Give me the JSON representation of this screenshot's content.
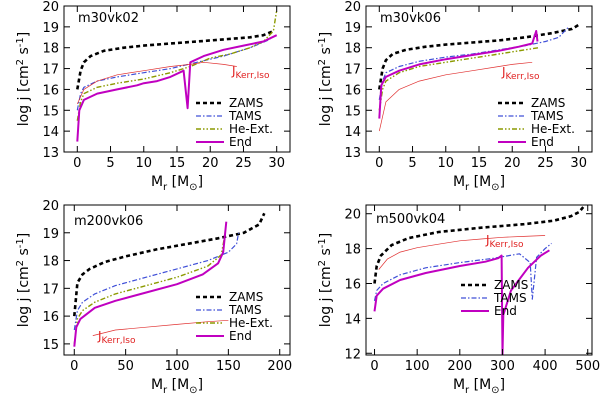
{
  "chart_data": [
    {
      "type": "line",
      "title": "m30vk02",
      "xlabel": "M_r [M_sun]",
      "ylabel": "log j [cm^2 s^-1]",
      "xlim": [
        -2,
        32
      ],
      "ylim": [
        13,
        20
      ],
      "x_ticks": [
        0,
        5,
        10,
        15,
        20,
        25,
        30
      ],
      "y_ticks": [
        13,
        14,
        15,
        16,
        17,
        18,
        19,
        20
      ],
      "legend": [
        "ZAMS",
        "TAMS",
        "He-Ext.",
        "End"
      ],
      "annotation": "J_Kerr,Iso",
      "series": [
        {
          "name": "ZAMS",
          "x": [
            0,
            0.5,
            1,
            2,
            4,
            7,
            10,
            14,
            18,
            22,
            26,
            28,
            29.5
          ],
          "y": [
            16.0,
            16.9,
            17.3,
            17.6,
            17.85,
            18.0,
            18.1,
            18.2,
            18.3,
            18.4,
            18.5,
            18.6,
            18.8
          ]
        },
        {
          "name": "TAMS",
          "x": [
            0,
            0.5,
            1,
            3,
            6,
            10,
            14,
            18,
            22,
            26,
            29
          ],
          "y": [
            15.0,
            15.8,
            16.1,
            16.4,
            16.6,
            16.8,
            17.0,
            17.3,
            17.6,
            18.0,
            18.4
          ]
        },
        {
          "name": "He-Ext.",
          "x": [
            0,
            0.5,
            1,
            3,
            6,
            10,
            14,
            17,
            20,
            23,
            26,
            28,
            29.5,
            30
          ],
          "y": [
            14.5,
            15.4,
            15.8,
            16.1,
            16.3,
            16.5,
            16.8,
            17.1,
            17.5,
            17.7,
            18.0,
            18.3,
            18.8,
            19.8
          ]
        },
        {
          "name": "End",
          "x": [
            0,
            0.3,
            1,
            3,
            6,
            9,
            10,
            12,
            14,
            16,
            16.6,
            17,
            19,
            22,
            25,
            28,
            30
          ],
          "y": [
            13.5,
            15.0,
            15.5,
            15.8,
            16.0,
            16.2,
            16.3,
            16.4,
            16.6,
            16.9,
            15.1,
            17.3,
            17.6,
            17.9,
            18.1,
            18.3,
            18.6
          ]
        },
        {
          "name": "J_Kerr,Iso",
          "x": [
            0,
            1,
            3,
            6,
            10,
            14,
            17,
            19,
            22,
            24
          ],
          "y": [
            15.3,
            16.0,
            16.4,
            16.7,
            16.9,
            17.1,
            17.2,
            17.3,
            17.2,
            17.1
          ]
        }
      ]
    },
    {
      "type": "line",
      "title": "m30vk06",
      "xlabel": "M_r [M_sun]",
      "ylabel": "log j [cm^2 s^-1]",
      "xlim": [
        -2,
        32
      ],
      "ylim": [
        13,
        20
      ],
      "x_ticks": [
        0,
        5,
        10,
        15,
        20,
        25,
        30
      ],
      "y_ticks": [
        13,
        14,
        15,
        16,
        17,
        18,
        19,
        20
      ],
      "legend": [
        "ZAMS",
        "TAMS",
        "He-Ext.",
        "End"
      ],
      "annotation": "J_Kerr,Iso",
      "series": [
        {
          "name": "ZAMS",
          "x": [
            0,
            0.5,
            1,
            2,
            4,
            7,
            10,
            14,
            18,
            22,
            26,
            29,
            30
          ],
          "y": [
            16.0,
            17.0,
            17.4,
            17.7,
            17.9,
            18.05,
            18.15,
            18.25,
            18.35,
            18.5,
            18.7,
            18.9,
            19.1
          ]
        },
        {
          "name": "TAMS",
          "x": [
            0,
            0.5,
            1,
            3,
            6,
            10,
            14,
            18,
            22,
            25,
            27,
            28.5
          ],
          "y": [
            15.5,
            16.4,
            16.8,
            17.1,
            17.35,
            17.55,
            17.7,
            17.9,
            18.1,
            18.3,
            18.5,
            19.0
          ]
        },
        {
          "name": "He-Ext.",
          "x": [
            0,
            0.5,
            1,
            3,
            6,
            10,
            14,
            18,
            21,
            24
          ],
          "y": [
            15.0,
            16.0,
            16.4,
            16.8,
            17.1,
            17.3,
            17.5,
            17.7,
            17.85,
            18.0
          ]
        },
        {
          "name": "End",
          "x": [
            0,
            0.3,
            1,
            3,
            6,
            10,
            14,
            18,
            21,
            23,
            23.6,
            23.8
          ],
          "y": [
            14.6,
            16.2,
            16.6,
            16.9,
            17.2,
            17.45,
            17.65,
            17.85,
            18.05,
            18.2,
            18.8,
            18.3
          ]
        },
        {
          "name": "J_Kerr,Iso",
          "x": [
            0,
            1,
            3,
            6,
            10,
            14,
            18,
            20,
            23
          ],
          "y": [
            14.0,
            15.4,
            16.0,
            16.4,
            16.7,
            16.9,
            17.1,
            17.2,
            17.3
          ]
        }
      ]
    },
    {
      "type": "line",
      "title": "m200vk06",
      "xlabel": "M_r [M_sun]",
      "ylabel": "log j [cm^2 s^-1]",
      "xlim": [
        -10,
        210
      ],
      "ylim": [
        14.6,
        20
      ],
      "x_ticks": [
        0,
        50,
        100,
        150,
        200
      ],
      "y_ticks": [
        15,
        16,
        17,
        18,
        19,
        20
      ],
      "legend": [
        "ZAMS",
        "TAMS",
        "He-Ext.",
        "End"
      ],
      "annotation": "J_Kerr,Iso",
      "series": [
        {
          "name": "ZAMS",
          "x": [
            0,
            3,
            8,
            15,
            30,
            50,
            80,
            110,
            140,
            165,
            180,
            185
          ],
          "y": [
            16.0,
            17.2,
            17.5,
            17.7,
            17.95,
            18.15,
            18.4,
            18.6,
            18.8,
            19.0,
            19.3,
            19.7
          ]
        },
        {
          "name": "TAMS",
          "x": [
            0,
            3,
            8,
            20,
            40,
            70,
            100,
            130,
            150,
            158,
            160
          ],
          "y": [
            15.5,
            16.2,
            16.5,
            16.8,
            17.1,
            17.4,
            17.7,
            18.0,
            18.3,
            18.6,
            19.0
          ]
        },
        {
          "name": "He-Ext.",
          "x": [
            0,
            3,
            8,
            20,
            40,
            70,
            100,
            130,
            143,
            147
          ],
          "y": [
            15.0,
            15.9,
            16.2,
            16.5,
            16.8,
            17.1,
            17.4,
            17.8,
            18.2,
            19.0
          ]
        },
        {
          "name": "End",
          "x": [
            0,
            2,
            6,
            20,
            40,
            70,
            100,
            125,
            140,
            145,
            148
          ],
          "y": [
            14.9,
            15.6,
            15.9,
            16.3,
            16.55,
            16.85,
            17.15,
            17.5,
            17.9,
            18.3,
            19.4
          ]
        },
        {
          "name": "J_Kerr,Iso",
          "x": [
            18,
            40,
            70,
            100,
            130,
            150
          ],
          "y": [
            15.3,
            15.5,
            15.6,
            15.7,
            15.8,
            15.85
          ]
        }
      ]
    },
    {
      "type": "line",
      "title": "m500vk04",
      "xlabel": "M_r [M_sun]",
      "ylabel": "log j [cm^2 s^-1]",
      "xlim": [
        -20,
        510
      ],
      "ylim": [
        11.9,
        20.5
      ],
      "x_ticks": [
        0,
        100,
        200,
        300,
        400,
        500
      ],
      "y_ticks": [
        12,
        14,
        16,
        18,
        20
      ],
      "legend": [
        "ZAMS",
        "TAMS",
        "End"
      ],
      "annotation": "J_Kerr,Iso",
      "series": [
        {
          "name": "ZAMS",
          "x": [
            0,
            5,
            15,
            40,
            80,
            150,
            250,
            350,
            420,
            460,
            480,
            490
          ],
          "y": [
            16.0,
            17.0,
            17.6,
            18.2,
            18.6,
            18.95,
            19.2,
            19.4,
            19.6,
            19.85,
            20.1,
            20.4
          ]
        },
        {
          "name": "TAMS",
          "x": [
            0,
            5,
            20,
            60,
            120,
            200,
            280,
            340,
            365,
            370,
            380,
            400,
            415
          ],
          "y": [
            15.0,
            15.6,
            16.0,
            16.5,
            16.9,
            17.2,
            17.45,
            17.7,
            17.2,
            15.1,
            17.5,
            18.0,
            18.3
          ]
        },
        {
          "name": "End",
          "x": [
            0,
            5,
            20,
            60,
            120,
            200,
            260,
            290,
            298,
            300,
            302,
            320,
            360,
            390,
            410
          ],
          "y": [
            14.4,
            15.3,
            15.7,
            16.2,
            16.6,
            17.0,
            17.25,
            17.45,
            17.6,
            11.95,
            14.2,
            15.6,
            16.9,
            17.6,
            17.9
          ]
        },
        {
          "name": "J_Kerr,Iso",
          "x": [
            10,
            30,
            60,
            100,
            150,
            200,
            250,
            300,
            350,
            400
          ],
          "y": [
            16.8,
            17.4,
            17.8,
            18.05,
            18.25,
            18.45,
            18.55,
            18.65,
            18.7,
            18.75
          ]
        }
      ]
    }
  ]
}
